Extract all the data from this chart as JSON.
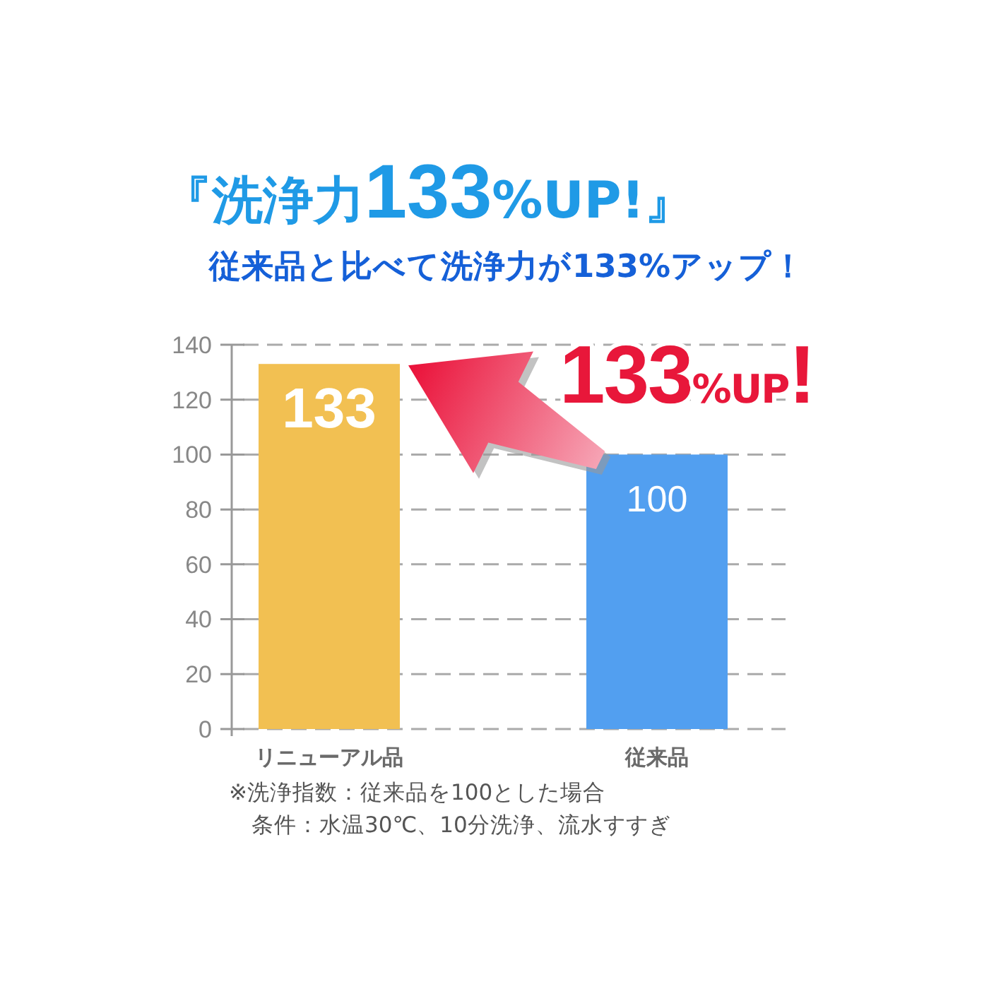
{
  "chart_data": {
    "type": "bar",
    "title": "『洗浄力133%UP!』",
    "subtitle": "従来品と比べて洗浄力が133%アップ！",
    "categories": [
      "リニューアル品",
      "従来品"
    ],
    "values": [
      133,
      100
    ],
    "colors": [
      "#f2c052",
      "#529ff0"
    ],
    "ylim": [
      0,
      140
    ],
    "yticks": [
      0,
      20,
      40,
      60,
      80,
      100,
      120,
      140
    ],
    "grid": "y",
    "data_labels": true,
    "annotations": [
      "133%UP!",
      "※洗浄指数：従来品を100とした場合",
      "条件：水温30℃、10分洗浄、流水すすぎ"
    ]
  }
}
